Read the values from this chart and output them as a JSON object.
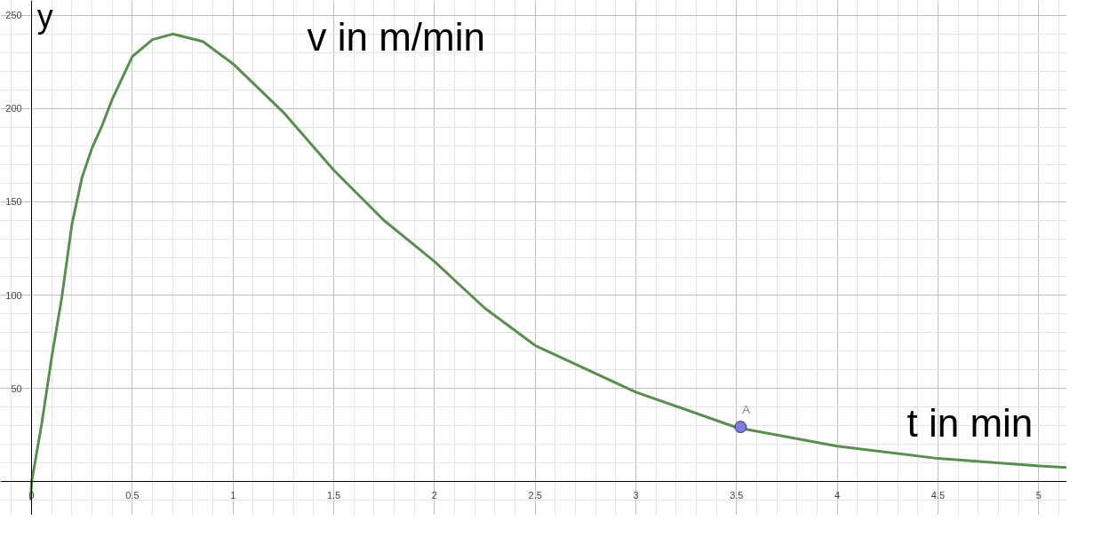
{
  "chart_data": {
    "type": "line",
    "title": "v in m/min",
    "xlabel": "t in min",
    "ylabel": "y",
    "xlim": [
      -0.155,
      5.14
    ],
    "ylim": [
      -18,
      258
    ],
    "xticks": [
      0,
      0.5,
      1,
      1.5,
      2,
      2.5,
      3,
      3.5,
      4,
      4.5,
      5
    ],
    "yticks": [
      50,
      100,
      150,
      200,
      250
    ],
    "grid": true,
    "line_style": "solid",
    "series": [
      {
        "color": "#5b8c51",
        "x": [
          -0.005,
          0,
          0.05,
          0.1,
          0.15,
          0.2,
          0.25,
          0.3,
          0.35,
          0.4,
          0.5,
          0.6,
          0.7,
          0.85,
          1,
          1.25,
          1.5,
          1.75,
          2,
          2.25,
          2.5,
          3,
          3.5,
          4,
          4.5,
          5,
          5.14
        ],
        "values": [
          -10,
          0,
          31,
          67,
          99,
          138,
          163,
          179,
          191,
          205,
          228,
          237,
          240,
          236,
          224,
          198,
          167,
          140,
          118,
          93,
          73,
          48,
          29,
          19,
          12.4,
          8.4,
          7.6
        ]
      },
      {
        "type": "scatter",
        "color": "#7b7be0",
        "x": [
          3.52
        ],
        "values": [
          29.3
        ]
      }
    ],
    "annotations": [
      {
        "text": "A",
        "x": 3.52,
        "y": 29.3
      }
    ]
  }
}
